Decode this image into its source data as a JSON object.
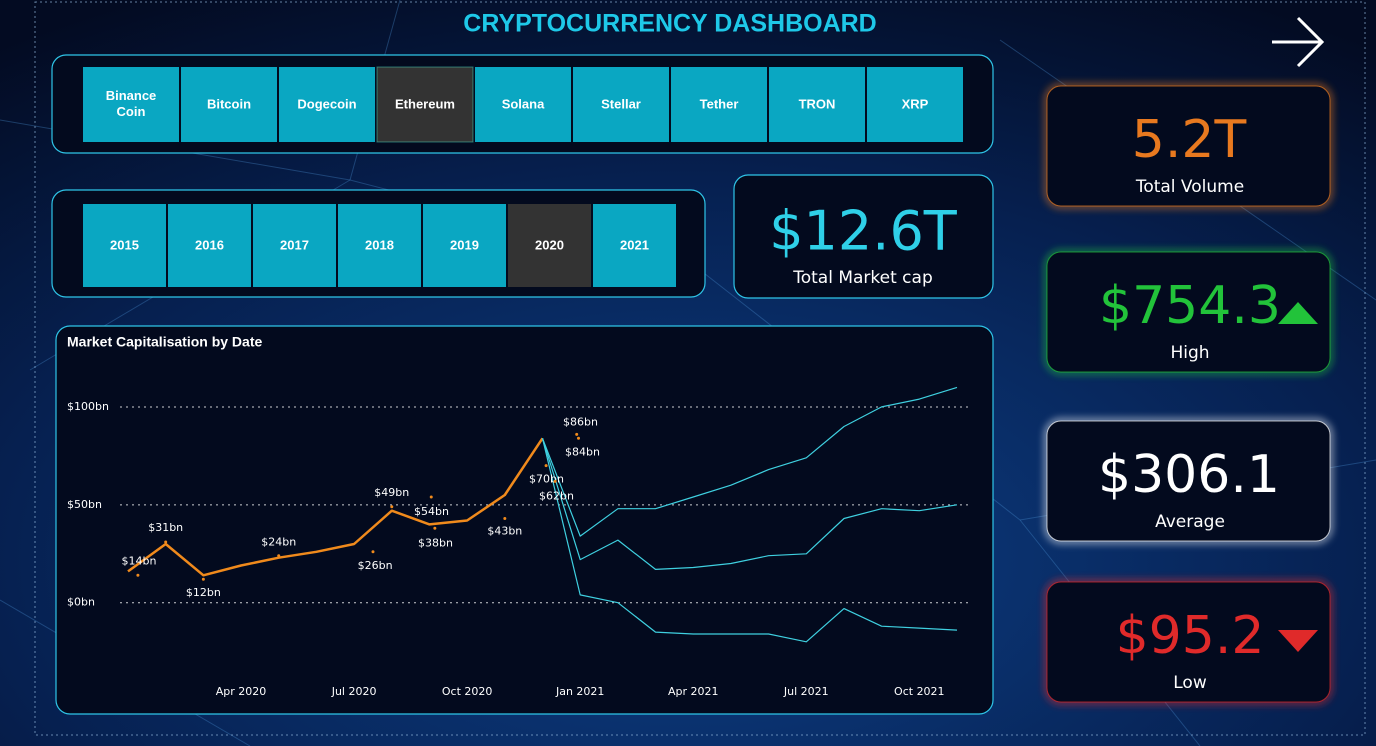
{
  "header": {
    "title": "CRYPTOCURRENCY DASHBOARD"
  },
  "coins": {
    "items": [
      "Binance Coin",
      "Bitcoin",
      "Dogecoin",
      "Ethereum",
      "Solana",
      "Stellar",
      "Tether",
      "TRON",
      "XRP"
    ],
    "selected": "Ethereum"
  },
  "years": {
    "items": [
      2015,
      2016,
      2017,
      2018,
      2019,
      2020,
      2021
    ],
    "selected": 2020
  },
  "market_cap": {
    "value": "$12.6T",
    "label": "Total Market cap"
  },
  "kpis": [
    {
      "value": "5.2T",
      "label": "Total Volume",
      "color": "#e8791f"
    },
    {
      "value": "$754.3",
      "label": "High",
      "color": "#22c33a",
      "trend": "up"
    },
    {
      "value": "$306.1",
      "label": "Average",
      "color": "#ffffff"
    },
    {
      "value": "$95.2",
      "label": "Low",
      "color": "#e02a2a",
      "trend": "down"
    }
  ],
  "chart_data": {
    "type": "line",
    "title": "Market Capitalisation by Date",
    "x": [
      "2020-01",
      "2020-02",
      "2020-03",
      "2020-04",
      "2020-05",
      "2020-06",
      "2020-07",
      "2020-08",
      "2020-09",
      "2020-10",
      "2020-11",
      "2020-12",
      "2021-01",
      "2021-02",
      "2021-03",
      "2021-04",
      "2021-05",
      "2021-06",
      "2021-07",
      "2021-08",
      "2021-09",
      "2021-10",
      "2021-11"
    ],
    "xlim": [
      "2020-01",
      "2021-11"
    ],
    "xticks": [
      {
        "value": "2020-04",
        "label": "Apr 2020"
      },
      {
        "value": "2020-07",
        "label": "Jul 2020"
      },
      {
        "value": "2020-10",
        "label": "Oct 2020"
      },
      {
        "value": "2021-01",
        "label": "Jan 2021"
      },
      {
        "value": "2021-04",
        "label": "Apr 2021"
      },
      {
        "value": "2021-07",
        "label": "Jul 2021"
      },
      {
        "value": "2021-10",
        "label": "Oct 2021"
      }
    ],
    "ylim": [
      -40,
      125
    ],
    "yticks": [
      {
        "value": 0,
        "label": "$0bn"
      },
      {
        "value": 50,
        "label": "$50bn"
      },
      {
        "value": 100,
        "label": "$100bn"
      }
    ],
    "grid": true,
    "series": [
      {
        "color": "#f08a1c",
        "values": [
          16,
          30,
          14,
          19,
          23,
          26,
          30,
          47,
          40,
          42,
          55,
          84,
          null,
          null,
          null,
          null,
          null,
          null,
          null,
          null,
          null,
          null,
          null
        ]
      },
      {
        "color": "#3fd0e0",
        "values": [
          null,
          null,
          null,
          null,
          null,
          null,
          null,
          null,
          null,
          null,
          null,
          84,
          34,
          48,
          48,
          54,
          60,
          68,
          74,
          90,
          100,
          104,
          110
        ]
      },
      {
        "color": "#3fd0e0",
        "values": [
          null,
          null,
          null,
          null,
          null,
          null,
          null,
          null,
          null,
          null,
          null,
          84,
          22,
          32,
          17,
          18,
          20,
          24,
          25,
          43,
          48,
          47,
          50
        ]
      },
      {
        "color": "#3fd0e0",
        "values": [
          null,
          null,
          null,
          null,
          null,
          null,
          null,
          null,
          null,
          null,
          null,
          84,
          4,
          0,
          -15,
          -16,
          -16,
          -16,
          -20,
          -3,
          -12,
          -13,
          -14
        ]
      }
    ],
    "annotations": [
      {
        "x": "2020-01",
        "value": 14,
        "label": "$14bn"
      },
      {
        "x": "2020-02",
        "value": 31,
        "label": "$31bn"
      },
      {
        "x": "2020-03",
        "value": 12,
        "label": "$12bn"
      },
      {
        "x": "2020-05",
        "value": 24,
        "label": "$24bn"
      },
      {
        "x": "2020-07",
        "value": 26,
        "label": "$26bn"
      },
      {
        "x": "2020-08",
        "value": 49,
        "label": "$49bn"
      },
      {
        "x": "2020-09",
        "value": 54,
        "label": "$54bn"
      },
      {
        "x": "2020-09",
        "value": 38,
        "label": "$38bn"
      },
      {
        "x": "2020-11",
        "value": 43,
        "label": "$43bn"
      },
      {
        "x": "2020-12",
        "value": 70,
        "label": "$70bn"
      },
      {
        "x": "2020-12",
        "value": 62,
        "label": "$62bn"
      },
      {
        "x": "2020-12",
        "value": 86,
        "label": "$86bn"
      },
      {
        "x": "2020-12",
        "value": 84,
        "label": "$84bn"
      }
    ]
  }
}
